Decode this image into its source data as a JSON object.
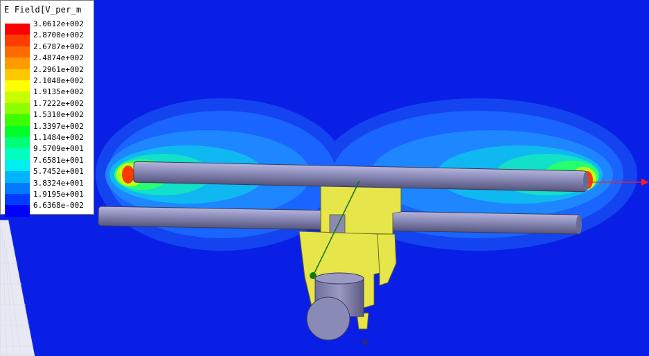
{
  "legend": {
    "title": "E Field[V_per_m",
    "levels": [
      {
        "label": "3.0612e+002",
        "color": "#ff0000"
      },
      {
        "label": "2.8700e+002",
        "color": "#ff3c00"
      },
      {
        "label": "2.6787e+002",
        "color": "#ff6a00"
      },
      {
        "label": "2.4874e+002",
        "color": "#ff9a00"
      },
      {
        "label": "2.2961e+002",
        "color": "#ffc800"
      },
      {
        "label": "2.1048e+002",
        "color": "#ffff00"
      },
      {
        "label": "1.9135e+002",
        "color": "#c8ff00"
      },
      {
        "label": "1.7222e+002",
        "color": "#8cff00"
      },
      {
        "label": "1.5310e+002",
        "color": "#3cff00"
      },
      {
        "label": "1.3397e+002",
        "color": "#00ff28"
      },
      {
        "label": "1.1484e+002",
        "color": "#00ff78"
      },
      {
        "label": "9.5709e+001",
        "color": "#00ffbe"
      },
      {
        "label": "7.6581e+001",
        "color": "#00f0f0"
      },
      {
        "label": "5.7452e+001",
        "color": "#00b4ff"
      },
      {
        "label": "3.8324e+001",
        "color": "#0078ff"
      },
      {
        "label": "1.9195e+001",
        "color": "#003cff"
      },
      {
        "label": "6.6368e-002",
        "color": "#0000ff"
      }
    ]
  },
  "scene": {
    "background_color": "#0a1fe6",
    "rod_color": "#8282b4",
    "fixture_color": "#e6e64b",
    "axis_arrow_color": "#ff1e1e",
    "feed_line_color": "#147814"
  }
}
